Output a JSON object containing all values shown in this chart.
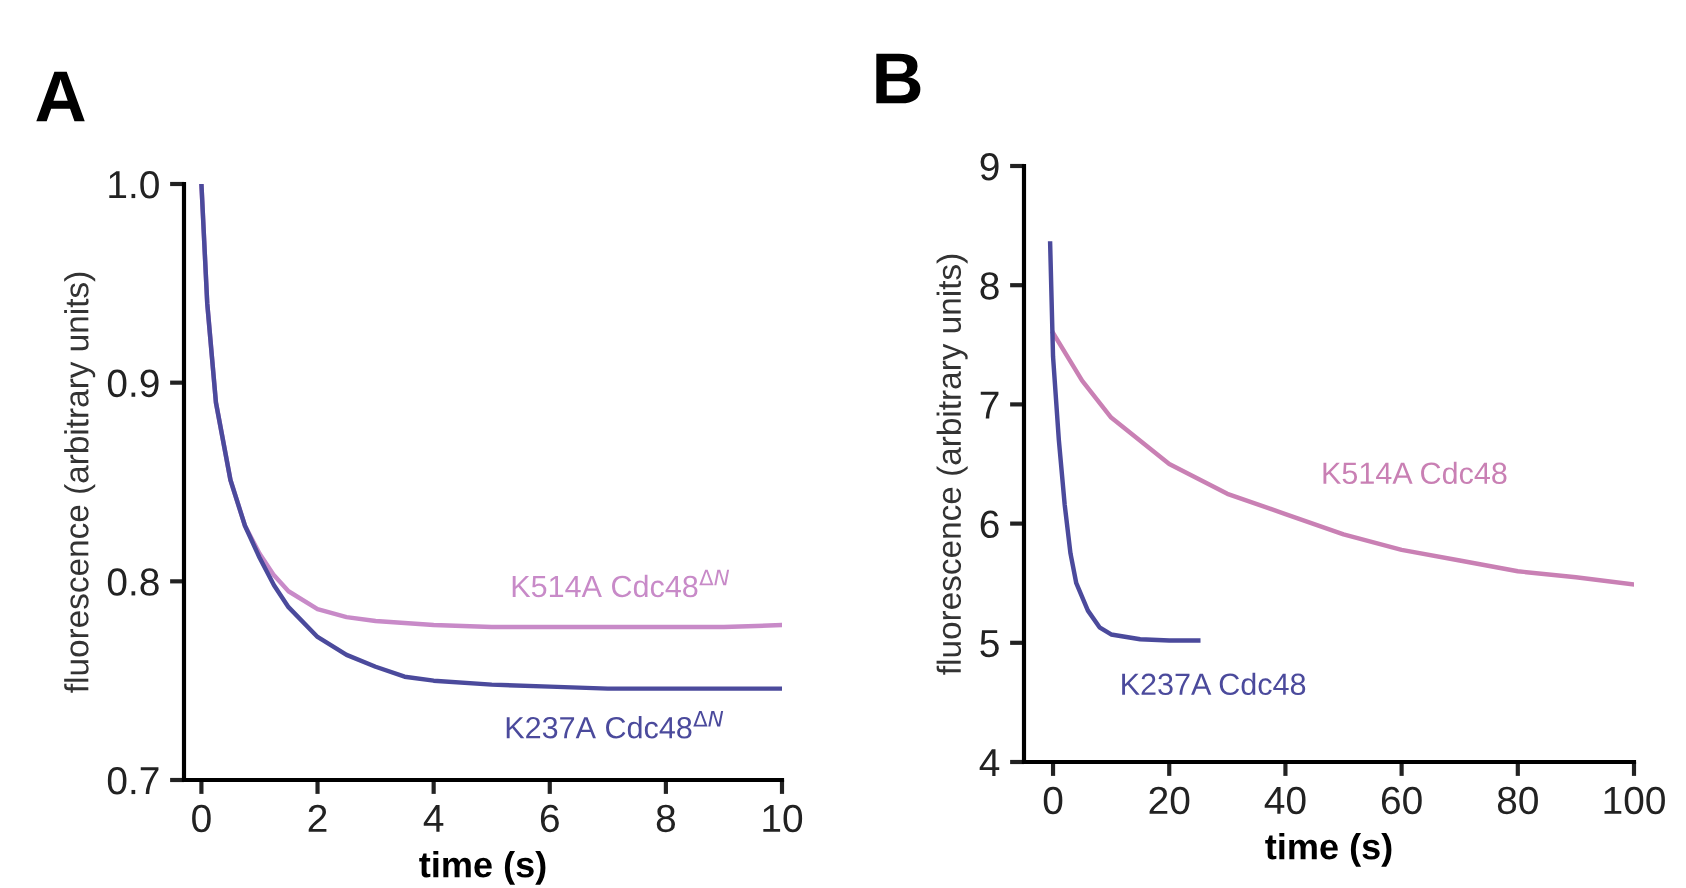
{
  "chart_data": [
    {
      "type": "line",
      "title": "A",
      "xlabel": "time (s)",
      "ylabel": "fluorescence (arbitrary units)",
      "xlim": [
        -0.3,
        10
      ],
      "ylim": [
        0.7,
        1.0
      ],
      "xticks": [
        0,
        2,
        4,
        6,
        8,
        10
      ],
      "yticks": [
        {
          "value": 0.7,
          "label": "0.7"
        },
        {
          "value": 0.8,
          "label": "0.8"
        },
        {
          "value": 0.9,
          "label": "0.9"
        },
        {
          "value": 1.0,
          "label": "1.0"
        }
      ],
      "grid": false,
      "legend": false,
      "marker": "none",
      "line_style": "solid",
      "series": [
        {
          "name": "K514A Cdc48$^{ΔN}$",
          "color": "#c88ac8",
          "x": [
            0,
            0.1,
            0.25,
            0.5,
            0.75,
            1,
            1.25,
            1.5,
            2,
            2.5,
            3,
            4,
            5,
            6,
            7,
            8,
            9,
            10
          ],
          "values": [
            1.0,
            0.94,
            0.89,
            0.851,
            0.828,
            0.814,
            0.803,
            0.795,
            0.786,
            0.782,
            0.78,
            0.778,
            0.777,
            0.777,
            0.777,
            0.777,
            0.777,
            0.778
          ]
        },
        {
          "name": "K237A Cdc48$^{ΔN}$",
          "color": "#4b4a9c",
          "x": [
            0,
            0.1,
            0.25,
            0.5,
            0.75,
            1,
            1.25,
            1.5,
            2,
            2.5,
            3,
            3.5,
            4,
            5,
            6,
            7,
            8,
            9,
            10
          ],
          "values": [
            1.0,
            0.94,
            0.89,
            0.851,
            0.828,
            0.812,
            0.798,
            0.787,
            0.772,
            0.763,
            0.757,
            0.752,
            0.75,
            0.748,
            0.747,
            0.746,
            0.746,
            0.746,
            0.746
          ]
        }
      ]
    },
    {
      "type": "line",
      "title": "B",
      "xlabel": "time (s)",
      "ylabel": "fluorescence (arbitrary units)",
      "xlim": [
        -5,
        100
      ],
      "ylim": [
        4,
        9
      ],
      "xticks": [
        0,
        20,
        40,
        60,
        80,
        100
      ],
      "yticks": [
        4,
        5,
        6,
        7,
        8,
        9
      ],
      "grid": false,
      "legend": false,
      "marker": "none",
      "line_style": "solid",
      "series": [
        {
          "name": "K514A Cdc48",
          "color": "#c980b4",
          "x": [
            0,
            5,
            10,
            20,
            30,
            40,
            50,
            60,
            70,
            80,
            90,
            100
          ],
          "values": [
            7.6,
            7.2,
            6.89,
            6.5,
            6.25,
            6.08,
            5.91,
            5.78,
            5.69,
            5.6,
            5.55,
            5.49
          ]
        },
        {
          "name": "K237A Cdc48",
          "color": "#4b4a9c",
          "x": [
            -0.5,
            0,
            1,
            2,
            3,
            4,
            6,
            8,
            10,
            15,
            20,
            25
          ],
          "values": [
            8.35,
            7.4,
            6.7,
            6.16,
            5.75,
            5.5,
            5.27,
            5.13,
            5.07,
            5.03,
            5.02,
            5.02
          ]
        }
      ]
    }
  ]
}
